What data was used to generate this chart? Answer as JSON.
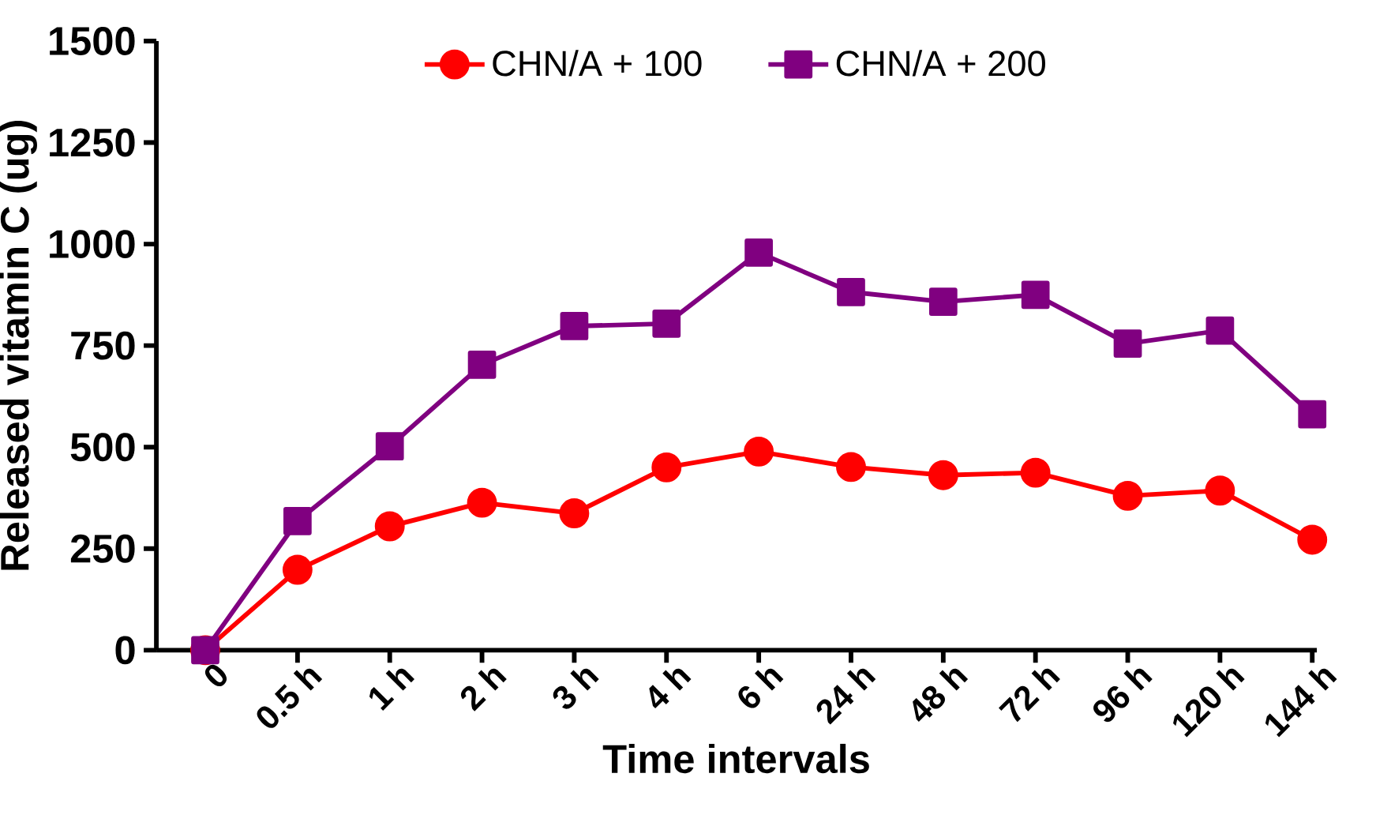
{
  "chart_data": {
    "type": "line",
    "xlabel": "Time intervals",
    "ylabel": "Released vitamin C (ug)",
    "categories": [
      "0",
      "0.5 h",
      "1 h",
      "2 h",
      "3 h",
      "4 h",
      "6 h",
      "24 h",
      "48 h",
      "72 h",
      "96 h",
      "120 h",
      "144 h"
    ],
    "series": [
      {
        "name": "CHN/A + 100",
        "color": "#ff0000",
        "marker": "circle",
        "values": [
          0,
          198,
          305,
          363,
          337,
          450,
          489,
          451,
          431,
          437,
          380,
          393,
          272
        ]
      },
      {
        "name": "CHN/A + 200",
        "color": "#800080",
        "marker": "square",
        "values": [
          0,
          318,
          502,
          703,
          798,
          804,
          979,
          882,
          858,
          875,
          755,
          787,
          581
        ]
      }
    ],
    "ylim": [
      0,
      1500
    ],
    "yticks": [
      0,
      250,
      500,
      750,
      1000,
      1250,
      1500
    ],
    "grid": false,
    "legend": "top",
    "line_style": "solid"
  }
}
